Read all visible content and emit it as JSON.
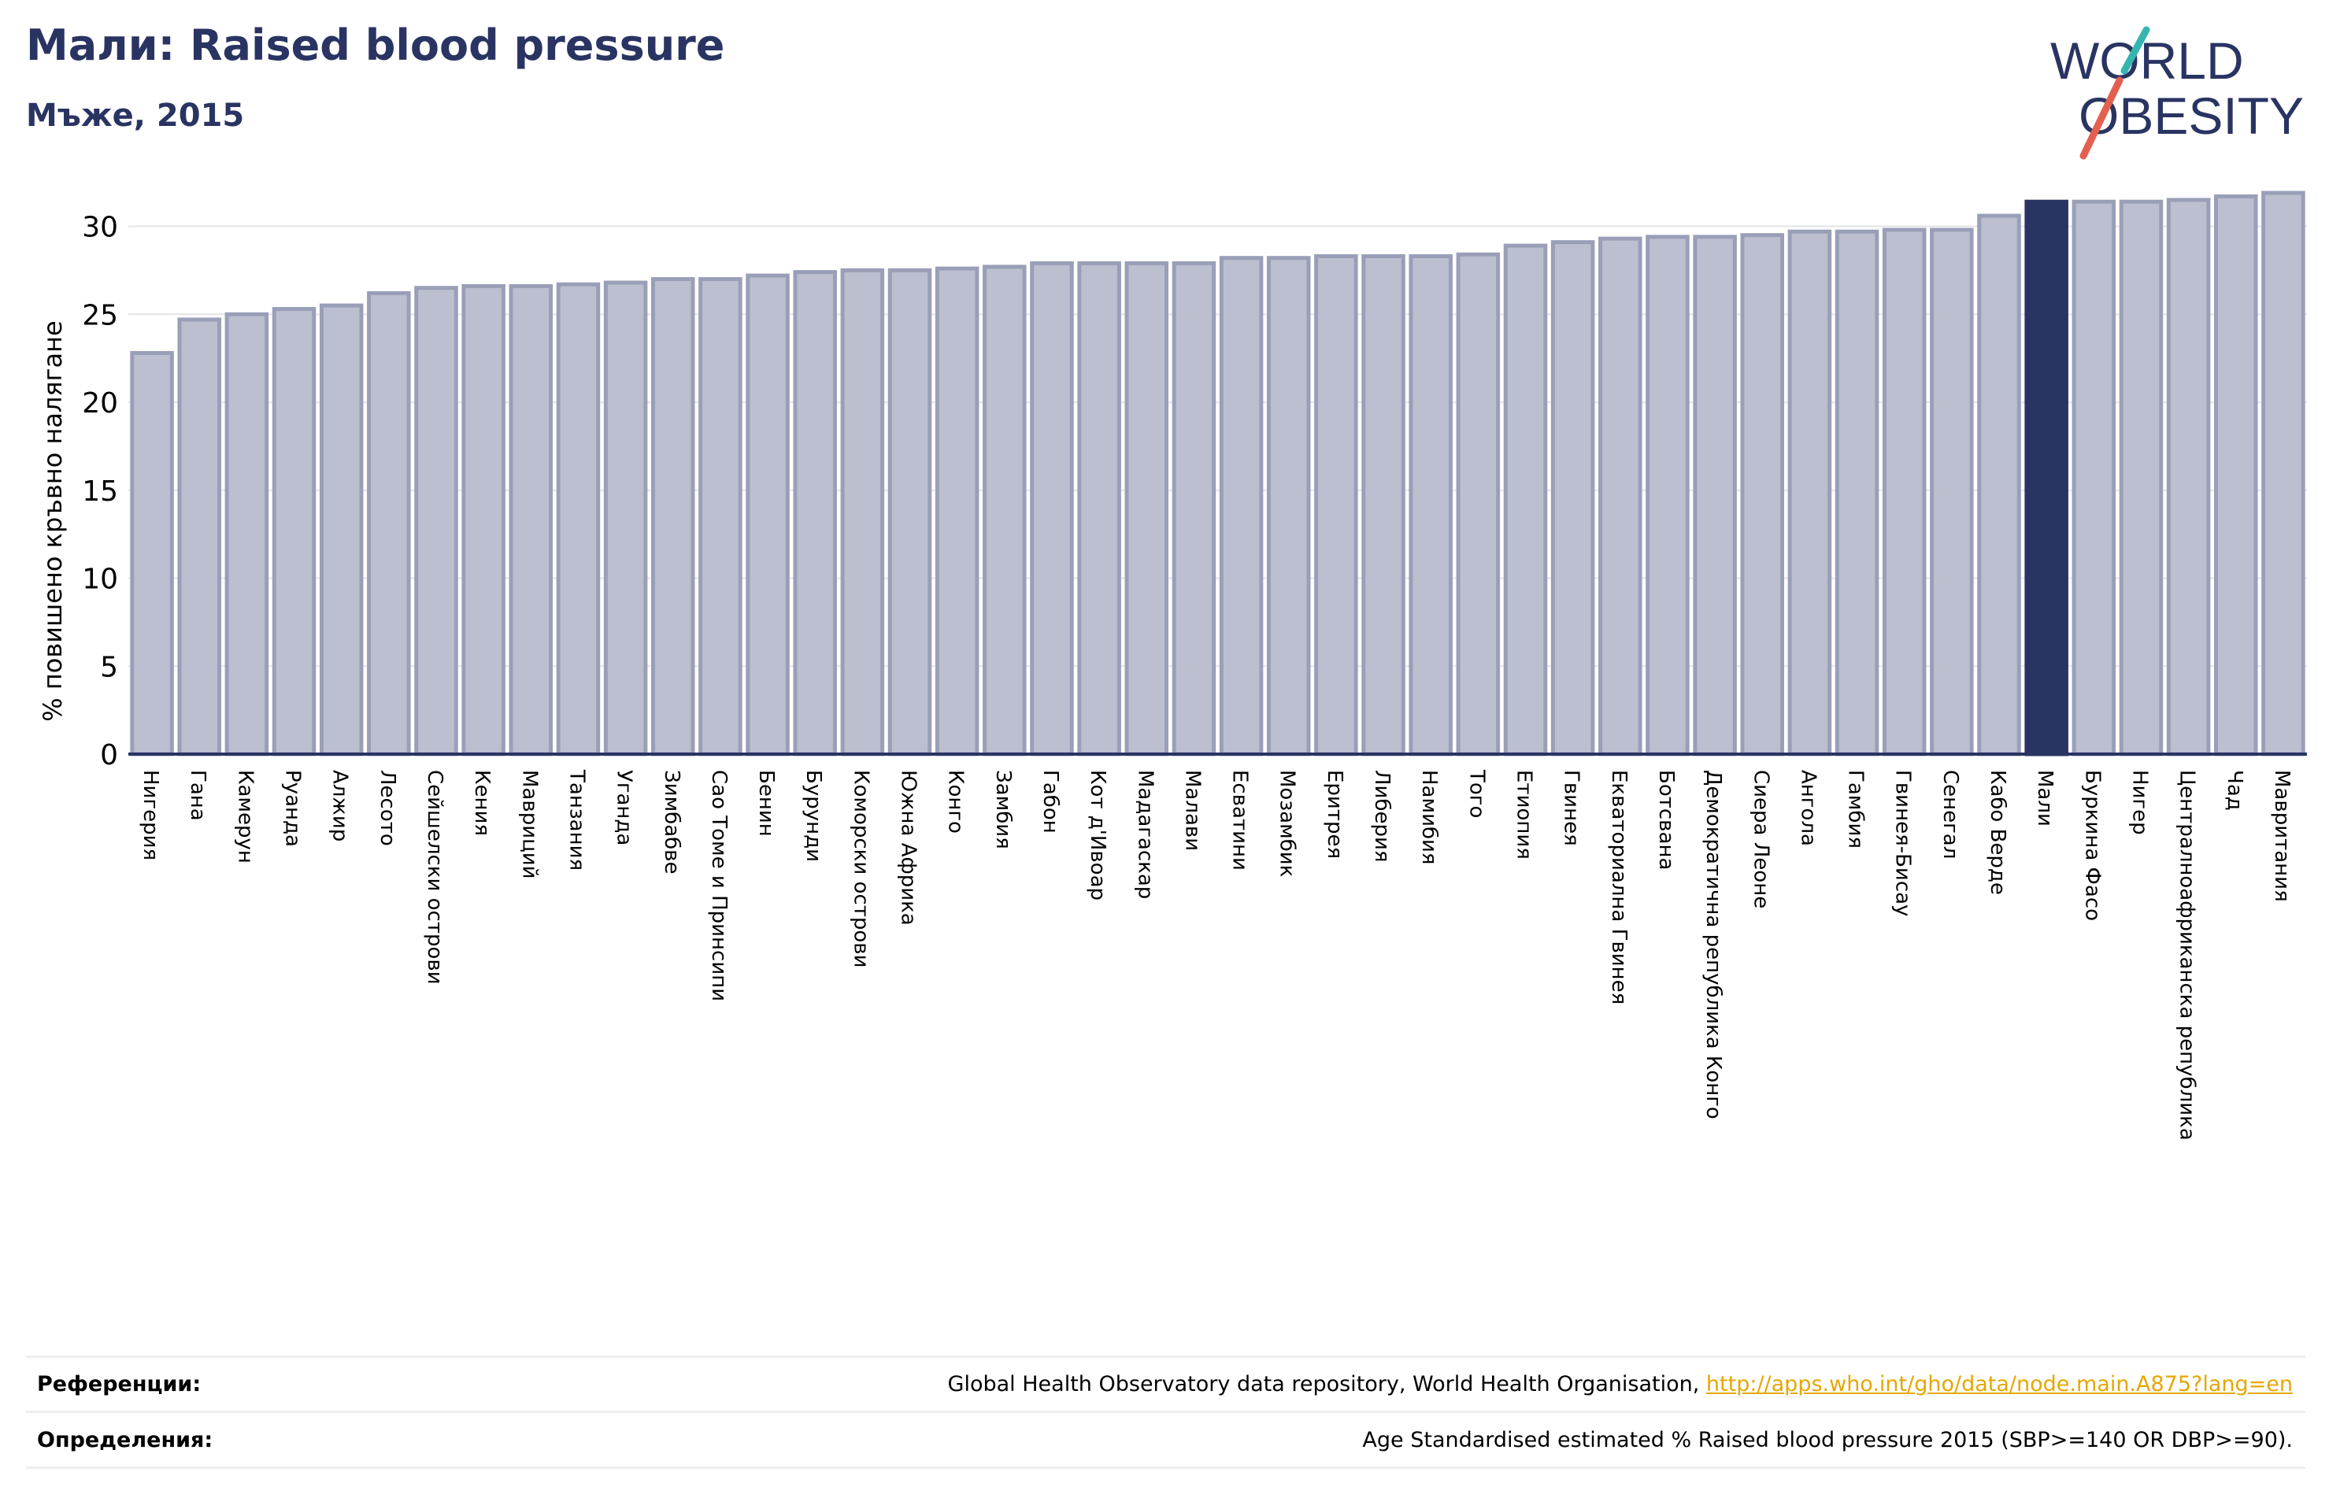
{
  "header": {
    "title": "Мали: Raised blood pressure",
    "subtitle": "Мъже, 2015"
  },
  "logo": {
    "line1": "WORLD",
    "line2": "OBESITY",
    "text_color": "#293462",
    "slash_teal": "#36b5b0",
    "slash_red": "#e4604e"
  },
  "colors": {
    "bar_default": "#bcbfcf",
    "bar_edge": "#9a9fb8",
    "bar_highlight": "#293462",
    "axis": "#293462",
    "grid": "#e3e3e8"
  },
  "chart_data": {
    "type": "bar",
    "ylabel": "% повишено кръвно налягане",
    "ylim": [
      0,
      32
    ],
    "yticks": [
      0,
      5,
      10,
      15,
      20,
      25,
      30
    ],
    "grid": true,
    "highlight": "Мали",
    "categories": [
      "Нигерия",
      "Гана",
      "Камерун",
      "Руанда",
      "Алжир",
      "Лесото",
      "Сейшелски острови",
      "Кения",
      "Мавриций",
      "Танзания",
      "Уганда",
      "Зимбабве",
      "Сао Томе и Принсипи",
      "Бенин",
      "Бурунди",
      "Коморски острови",
      "Южна Африка",
      "Конго",
      "Замбия",
      "Габон",
      "Кот д'Ивоар",
      "Мадагаскар",
      "Малави",
      "Есватини",
      "Мозамбик",
      "Еритрея",
      "Либерия",
      "Намибия",
      "Того",
      "Етиопия",
      "Гвинея",
      "Екваториална Гвинея",
      "Ботсвана",
      "Демократична република Конго",
      "Сиера Леоне",
      "Ангола",
      "Гамбия",
      "Гвинея-Бисау",
      "Сенегал",
      "Кабо Верде",
      "Мали",
      "Буркина Фасо",
      "Нигер",
      "Централноафриканска република",
      "Чад",
      "Мавритания"
    ],
    "values": [
      22.8,
      24.7,
      25.0,
      25.3,
      25.5,
      26.2,
      26.5,
      26.6,
      26.6,
      26.7,
      26.8,
      27.0,
      27.0,
      27.2,
      27.4,
      27.5,
      27.5,
      27.6,
      27.7,
      27.9,
      27.9,
      27.9,
      27.9,
      28.2,
      28.2,
      28.3,
      28.3,
      28.3,
      28.4,
      28.9,
      29.1,
      29.3,
      29.4,
      29.4,
      29.5,
      29.7,
      29.7,
      29.8,
      29.8,
      30.6,
      31.4,
      31.4,
      31.4,
      31.5,
      31.7,
      31.9
    ]
  },
  "footer": {
    "references_label": "Референции:",
    "references_text": "Global Health Observatory data repository, World Health Organisation, ",
    "references_link": "http://apps.who.int/gho/data/node.main.A875?lang=en",
    "definitions_label": "Определения:",
    "definitions_text": "Age Standardised estimated % Raised blood pressure 2015 (SBP>=140 OR DBP>=90)."
  }
}
